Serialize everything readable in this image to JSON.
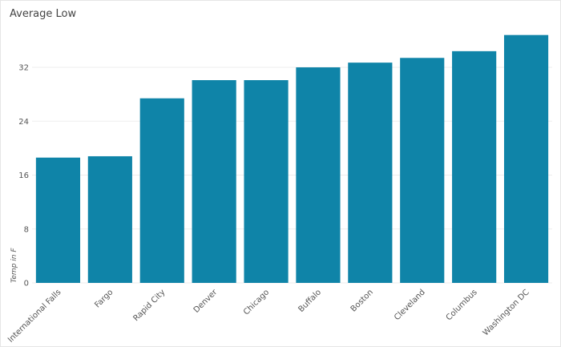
{
  "chart_data": {
    "type": "bar",
    "title": "Average Low",
    "y_label": "Temp in F",
    "categories": [
      "International Falls",
      "Fargo",
      "Rapid City",
      "Denver",
      "Chicago",
      "Buffalo",
      "Boston",
      "Cleveland",
      "Columbus",
      "Washington DC"
    ],
    "values": [
      18.6,
      18.8,
      27.4,
      30.1,
      30.1,
      32.0,
      32.7,
      33.4,
      34.4,
      36.8
    ],
    "color": "#0f84a8",
    "ylim": [
      0,
      38
    ],
    "yticks": [
      0,
      8,
      16,
      24,
      32
    ],
    "grid": true
  }
}
